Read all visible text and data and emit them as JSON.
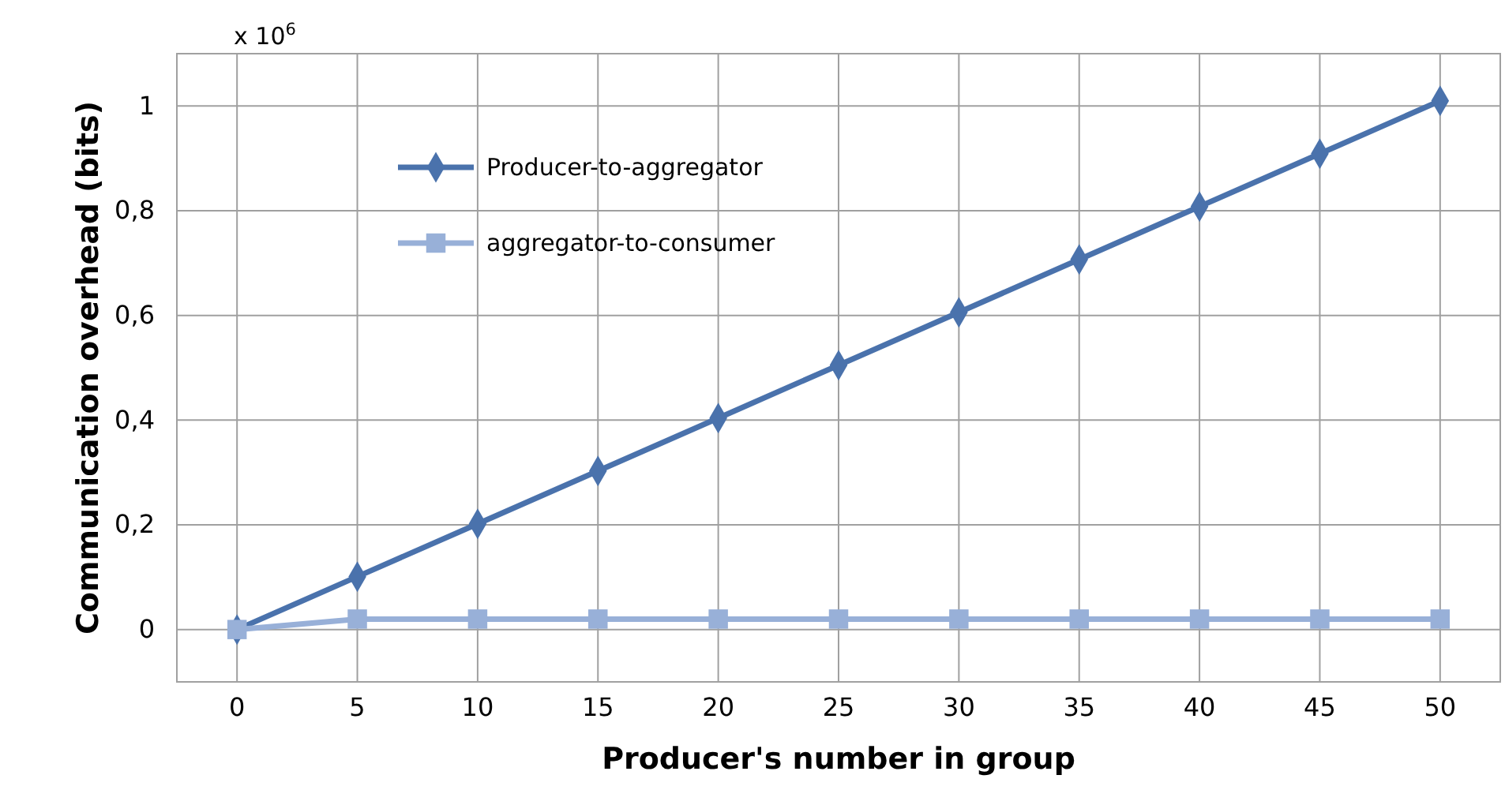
{
  "chart_data": {
    "type": "line",
    "xlabel": "Producer's number in group",
    "ylabel": "Communication overhead (bits)",
    "annotations": [
      "x 10$^{6}$"
    ],
    "x": [
      0,
      5,
      10,
      15,
      20,
      25,
      30,
      35,
      40,
      45,
      50
    ],
    "series": [
      {
        "name": "Producer-to-aggregator",
        "color": "#4a72ac",
        "marker": "diamond",
        "values": [
          0,
          0.101,
          0.202,
          0.303,
          0.404,
          0.505,
          0.606,
          0.707,
          0.808,
          0.909,
          1.01
        ]
      },
      {
        "name": "aggregator-to-consumer",
        "color": "#98b0d8",
        "marker": "square",
        "values": [
          0,
          0.02,
          0.02,
          0.02,
          0.02,
          0.02,
          0.02,
          0.02,
          0.02,
          0.02,
          0.02
        ]
      }
    ],
    "xlim": [
      -2.5,
      52.5
    ],
    "xticks": [
      0,
      5,
      10,
      15,
      20,
      25,
      30,
      35,
      40,
      45,
      50
    ],
    "ylim": [
      -0.1,
      1.1
    ],
    "yticks": [
      0,
      {
        "value": 0.2,
        "label": "0,2"
      },
      {
        "value": 0.4,
        "label": "0,4"
      },
      {
        "value": 0.6,
        "label": "0,6"
      },
      {
        "value": 0.8,
        "label": "0,8"
      },
      1
    ],
    "grid": true,
    "legend": "top left",
    "line_style": "solid"
  }
}
